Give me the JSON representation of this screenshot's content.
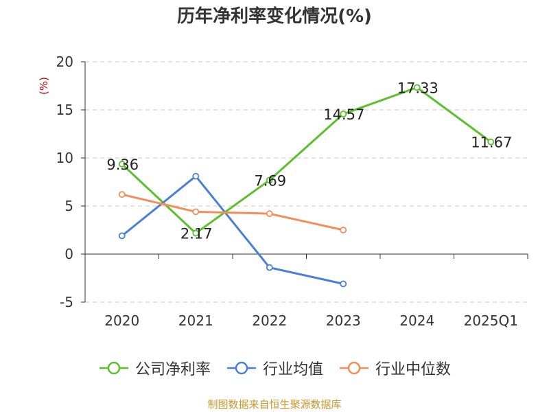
{
  "chart_data": {
    "type": "line",
    "title": "历年净利率变化情况(%)",
    "ylabel": "(%)",
    "categories": [
      "2020",
      "2021",
      "2022",
      "2023",
      "2024",
      "2025Q1"
    ],
    "yticks": [
      "20",
      "15",
      "10",
      "5",
      "0",
      "-5"
    ],
    "ylim": [
      -5,
      20
    ],
    "grid": true,
    "legend_position": "bottom",
    "series": [
      {
        "name": "公司净利率",
        "color": "#5cc02c",
        "values": [
          9.36,
          2.17,
          7.69,
          14.57,
          17.33,
          11.67
        ],
        "labels": [
          "9.36",
          "2.17",
          "7.69",
          "14.57",
          "17.33",
          "11.67"
        ]
      },
      {
        "name": "行业均值",
        "color": "#4a7fd6",
        "values": [
          1.9,
          8.1,
          -1.4,
          -3.1,
          null,
          null
        ]
      },
      {
        "name": "行业中位数",
        "color": "#f28e5a",
        "values": [
          6.2,
          4.4,
          4.2,
          2.5,
          null,
          null
        ]
      }
    ]
  },
  "footer": {
    "source": "制图数据来自恒生聚源数据库"
  }
}
